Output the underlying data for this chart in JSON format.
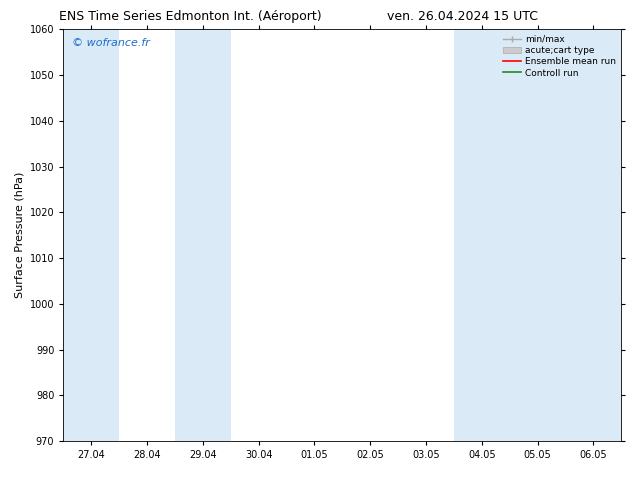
{
  "title_left": "ENS Time Series Edmonton Int. (Aéroport)",
  "title_right": "ven. 26.04.2024 15 UTC",
  "ylabel": "Surface Pressure (hPa)",
  "watermark": "© wofrance.fr",
  "watermark_color": "#1a6fce",
  "ylim": [
    970,
    1060
  ],
  "yticks": [
    970,
    980,
    990,
    1000,
    1010,
    1020,
    1030,
    1040,
    1050,
    1060
  ],
  "xtick_labels": [
    "27.04",
    "28.04",
    "29.04",
    "30.04",
    "01.05",
    "02.05",
    "03.05",
    "04.05",
    "05.05",
    "06.05"
  ],
  "shaded_columns": [
    0,
    2,
    7,
    8,
    9
  ],
  "band_color": "#daeaf7",
  "legend_entries": [
    {
      "label": "min/max",
      "color": "#aaaaaa",
      "type": "line_with_caps"
    },
    {
      "label": "acute;cart type",
      "color": "#cccccc",
      "type": "fill"
    },
    {
      "label": "Ensemble mean run",
      "color": "#ff0000",
      "type": "line"
    },
    {
      "label": "Controll run",
      "color": "#228b22",
      "type": "line"
    }
  ],
  "background_color": "#ffffff",
  "title_fontsize": 9,
  "tick_fontsize": 7,
  "ylabel_fontsize": 8,
  "watermark_fontsize": 8
}
